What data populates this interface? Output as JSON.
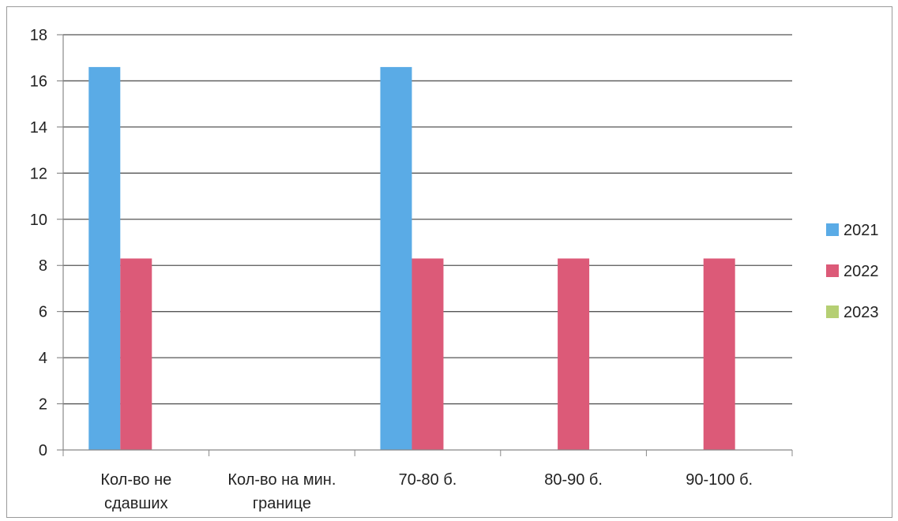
{
  "chart_data": {
    "type": "bar",
    "categories": [
      [
        "Кол-во не",
        "сдавших"
      ],
      [
        "Кол-во на мин.",
        "границе"
      ],
      [
        "70-80 б."
      ],
      [
        "80-90 б."
      ],
      [
        "90-100 б."
      ]
    ],
    "series": [
      {
        "name": "2021",
        "color": "#5aabe6",
        "values": [
          16.6,
          0,
          16.6,
          0,
          0
        ]
      },
      {
        "name": "2022",
        "color": "#dc5a78",
        "values": [
          8.3,
          0,
          8.3,
          8.3,
          8.3
        ]
      },
      {
        "name": "2023",
        "color": "#b5cf73",
        "values": [
          0,
          0,
          0,
          0,
          0
        ]
      }
    ],
    "ylim": [
      0,
      18
    ],
    "yticks": [
      "0",
      "2",
      "4",
      "6",
      "8",
      "10",
      "12",
      "14",
      "16",
      "18"
    ],
    "grid": true,
    "legend_position": "right",
    "title": "",
    "xlabel": "",
    "ylabel": ""
  }
}
